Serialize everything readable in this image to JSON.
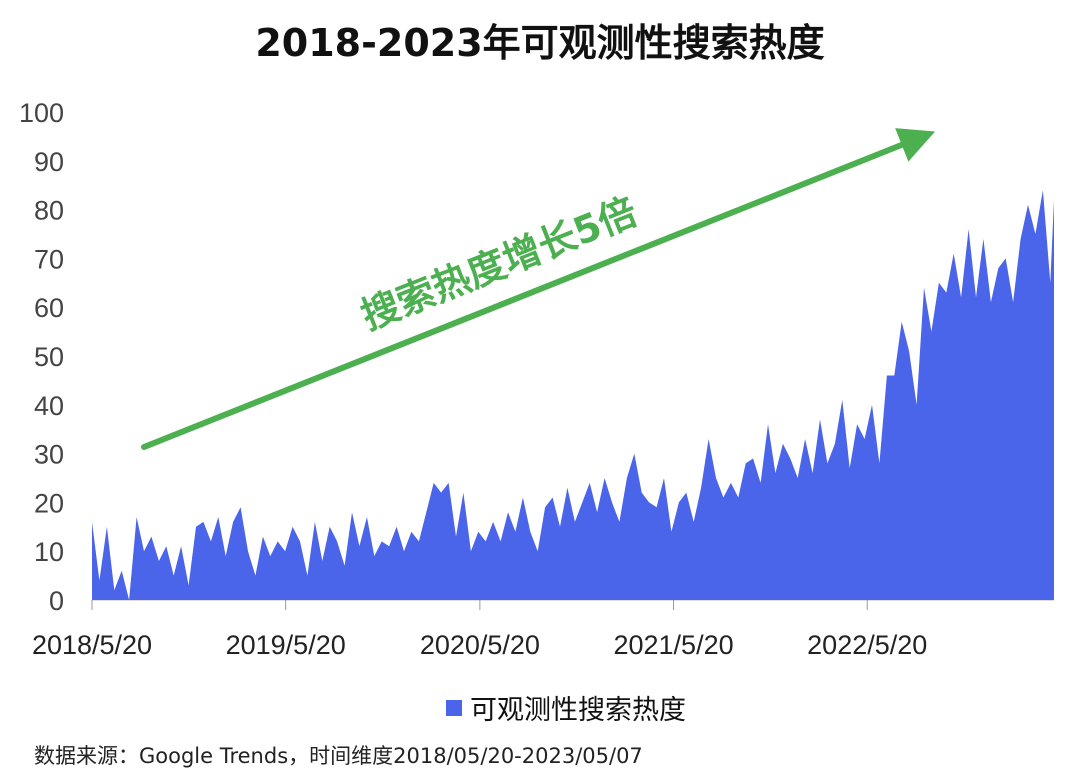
{
  "chart_data": {
    "type": "area",
    "title": "2018-2023年可观测性搜索热度",
    "xlabel": "",
    "ylabel": "",
    "ylim": [
      0,
      100
    ],
    "y_ticks": [
      0,
      10,
      20,
      30,
      40,
      50,
      60,
      70,
      80,
      90,
      100
    ],
    "x_range": [
      "2018/5/20",
      "2023/5/07"
    ],
    "x_ticks": [
      {
        "date": "2018/5/20",
        "label": "2018/5/20"
      },
      {
        "date": "2019/5/20",
        "label": "2019/5/20"
      },
      {
        "date": "2020/5/20",
        "label": "2020/5/20"
      },
      {
        "date": "2021/5/20",
        "label": "2021/5/20"
      },
      {
        "date": "2022/5/20",
        "label": "2022/5/20"
      }
    ],
    "grid": false,
    "legend_position": "bottom",
    "series": [
      {
        "name": "可观测性搜索热度",
        "color": "#4a64ea",
        "points": [
          [
            "2018-05-20",
            16
          ],
          [
            "2018-06-03",
            4
          ],
          [
            "2018-06-17",
            15
          ],
          [
            "2018-07-01",
            2
          ],
          [
            "2018-07-15",
            6
          ],
          [
            "2018-07-29",
            0
          ],
          [
            "2018-08-12",
            17
          ],
          [
            "2018-08-26",
            10
          ],
          [
            "2018-09-09",
            13
          ],
          [
            "2018-09-23",
            8
          ],
          [
            "2018-10-07",
            11
          ],
          [
            "2018-10-21",
            5
          ],
          [
            "2018-11-04",
            11
          ],
          [
            "2018-11-18",
            3
          ],
          [
            "2018-12-02",
            15
          ],
          [
            "2018-12-16",
            16
          ],
          [
            "2018-12-30",
            12
          ],
          [
            "2019-01-13",
            17
          ],
          [
            "2019-01-27",
            9
          ],
          [
            "2019-02-10",
            16
          ],
          [
            "2019-02-24",
            19
          ],
          [
            "2019-03-10",
            10
          ],
          [
            "2019-03-24",
            5
          ],
          [
            "2019-04-07",
            13
          ],
          [
            "2019-04-21",
            9
          ],
          [
            "2019-05-05",
            12
          ],
          [
            "2019-05-19",
            10
          ],
          [
            "2019-06-02",
            15
          ],
          [
            "2019-06-16",
            12
          ],
          [
            "2019-06-30",
            5
          ],
          [
            "2019-07-14",
            16
          ],
          [
            "2019-07-28",
            8
          ],
          [
            "2019-08-11",
            15
          ],
          [
            "2019-08-25",
            12
          ],
          [
            "2019-09-08",
            7
          ],
          [
            "2019-09-22",
            18
          ],
          [
            "2019-10-06",
            11
          ],
          [
            "2019-10-20",
            17
          ],
          [
            "2019-11-03",
            9
          ],
          [
            "2019-11-17",
            12
          ],
          [
            "2019-12-01",
            11
          ],
          [
            "2019-12-15",
            15
          ],
          [
            "2019-12-29",
            10
          ],
          [
            "2020-01-12",
            14
          ],
          [
            "2020-01-26",
            12
          ],
          [
            "2020-02-09",
            18
          ],
          [
            "2020-02-23",
            24
          ],
          [
            "2020-03-08",
            22
          ],
          [
            "2020-03-22",
            24
          ],
          [
            "2020-04-05",
            13
          ],
          [
            "2020-04-19",
            22
          ],
          [
            "2020-05-03",
            10
          ],
          [
            "2020-05-17",
            14
          ],
          [
            "2020-05-31",
            12
          ],
          [
            "2020-06-14",
            16
          ],
          [
            "2020-06-28",
            12
          ],
          [
            "2020-07-12",
            18
          ],
          [
            "2020-07-26",
            14
          ],
          [
            "2020-08-09",
            21
          ],
          [
            "2020-08-23",
            14
          ],
          [
            "2020-09-06",
            10
          ],
          [
            "2020-09-20",
            19
          ],
          [
            "2020-10-04",
            21
          ],
          [
            "2020-10-18",
            15
          ],
          [
            "2020-11-01",
            23
          ],
          [
            "2020-11-15",
            16
          ],
          [
            "2020-11-29",
            20
          ],
          [
            "2020-12-13",
            24
          ],
          [
            "2020-12-27",
            18
          ],
          [
            "2021-01-10",
            25
          ],
          [
            "2021-01-24",
            20
          ],
          [
            "2021-02-07",
            16
          ],
          [
            "2021-02-21",
            25
          ],
          [
            "2021-03-07",
            30
          ],
          [
            "2021-03-21",
            22
          ],
          [
            "2021-04-04",
            20
          ],
          [
            "2021-04-18",
            19
          ],
          [
            "2021-05-02",
            25
          ],
          [
            "2021-05-16",
            14
          ],
          [
            "2021-05-30",
            20
          ],
          [
            "2021-06-13",
            22
          ],
          [
            "2021-06-27",
            16
          ],
          [
            "2021-07-11",
            23
          ],
          [
            "2021-07-25",
            33
          ],
          [
            "2021-08-08",
            25
          ],
          [
            "2021-08-22",
            21
          ],
          [
            "2021-09-05",
            24
          ],
          [
            "2021-09-19",
            21
          ],
          [
            "2021-10-03",
            28
          ],
          [
            "2021-10-17",
            29
          ],
          [
            "2021-10-31",
            24
          ],
          [
            "2021-11-14",
            36
          ],
          [
            "2021-11-28",
            26
          ],
          [
            "2021-12-12",
            32
          ],
          [
            "2021-12-26",
            29
          ],
          [
            "2022-01-09",
            25
          ],
          [
            "2022-01-23",
            33
          ],
          [
            "2022-02-06",
            26
          ],
          [
            "2022-02-20",
            37
          ],
          [
            "2022-03-06",
            28
          ],
          [
            "2022-03-20",
            32
          ],
          [
            "2022-04-03",
            41
          ],
          [
            "2022-04-17",
            27
          ],
          [
            "2022-05-01",
            36
          ],
          [
            "2022-05-15",
            33
          ],
          [
            "2022-05-29",
            40
          ],
          [
            "2022-06-12",
            28
          ],
          [
            "2022-06-26",
            46
          ],
          [
            "2022-07-10",
            46
          ],
          [
            "2022-07-24",
            57
          ],
          [
            "2022-08-07",
            51
          ],
          [
            "2022-08-21",
            40
          ],
          [
            "2022-09-04",
            64
          ],
          [
            "2022-09-18",
            55
          ],
          [
            "2022-10-02",
            65
          ],
          [
            "2022-10-16",
            63
          ],
          [
            "2022-10-30",
            71
          ],
          [
            "2022-11-13",
            62
          ],
          [
            "2022-11-27",
            76
          ],
          [
            "2022-12-11",
            62
          ],
          [
            "2022-12-25",
            74
          ],
          [
            "2023-01-08",
            61
          ],
          [
            "2023-01-22",
            68
          ],
          [
            "2023-02-05",
            70
          ],
          [
            "2023-02-19",
            61
          ],
          [
            "2023-03-05",
            74
          ],
          [
            "2023-03-19",
            81
          ],
          [
            "2023-04-02",
            75
          ],
          [
            "2023-04-16",
            84
          ],
          [
            "2023-04-30",
            65
          ],
          [
            "2023-05-07",
            82
          ]
        ]
      }
    ],
    "annotations": [
      {
        "type": "arrow",
        "text": "搜索热度增长5倍",
        "color": "#4caf50"
      }
    ]
  },
  "source_note": "数据来源：Google Trends，时间维度2018/05/20-2023/05/07"
}
